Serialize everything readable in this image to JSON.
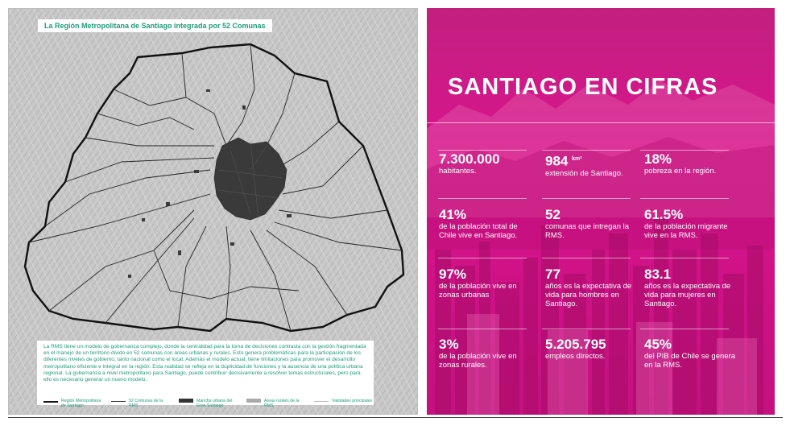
{
  "map": {
    "title": "La Región Metropolitana de Santiago integrada por 52 Comunas",
    "description": "La RMS tiene un modelo de gobernanza complejo, donde la centralidad para la toma de decisiones contrasta con la gestión fragmentada en el manejo de un territorio divido en 52 comunas con áreas urbanas y rurales. Esto genera problemáticas para la participación de los diferentes niveles de gobierno, tanto nacional como el local. Además el modelo actual, tiene limitaciones para promover el desarrollo metropolitano eficiente e integral en la región. Esta realidad se refleja en la duplicidad de funciones y la ausencia de una política urbana regional. La gobernanza a nivel metropolitano para Santiago, puede contribuir decisivamente a resolver temas estructurales, pero para ello es necesario generar un nuevo modelo.",
    "legend": [
      {
        "label": "Región Metropolitana de Santiago",
        "swatch": "region-line-icon"
      },
      {
        "label": "52 Comunas de la RMS",
        "swatch": "comuna-line-icon"
      },
      {
        "label": "Mancha urbana del Gran Santiago",
        "swatch": "urban-area-icon"
      },
      {
        "label": "Áreas rurales de la RMS",
        "swatch": "rural-area-icon"
      },
      {
        "label": "Vialidades principales",
        "swatch": "road-line-icon"
      }
    ],
    "colors": {
      "accent": "#1e9b7a",
      "urban": "#333333"
    }
  },
  "stats": {
    "title": "SANTIAGO EN CIFRAS",
    "colors": {
      "background": "#d8148d",
      "text": "#ffffff"
    },
    "items": [
      {
        "value": "7.300.000",
        "unit": "",
        "desc": "habitantes."
      },
      {
        "value": "984",
        "unit": "km²",
        "desc": "extensión de Santiago."
      },
      {
        "value": "18%",
        "unit": "",
        "desc": "pobreza en la región."
      },
      {
        "value": "41%",
        "unit": "",
        "desc": "de la población total de Chile vive en Santiago."
      },
      {
        "value": "52",
        "unit": "",
        "desc": "comunas que intregan la RMS."
      },
      {
        "value": "61.5%",
        "unit": "",
        "desc": "de la población migrante vive en la RMS."
      },
      {
        "value": "97%",
        "unit": "",
        "desc": "de la población vive en zonas urbanas"
      },
      {
        "value": "77",
        "unit": "",
        "desc": "años es la expectativa de vida para hombres en Santiago."
      },
      {
        "value": "83.1",
        "unit": "",
        "desc": "años es la expectativa de vida para mujeres en Santiago."
      },
      {
        "value": "3%",
        "unit": "",
        "desc": "de la población vive en zonas rurales."
      },
      {
        "value": "5.205.795",
        "unit": "",
        "desc": "empleos directos."
      },
      {
        "value": "45%",
        "unit": "",
        "desc": "del PIB de Chile se genera en la RMS."
      }
    ]
  }
}
